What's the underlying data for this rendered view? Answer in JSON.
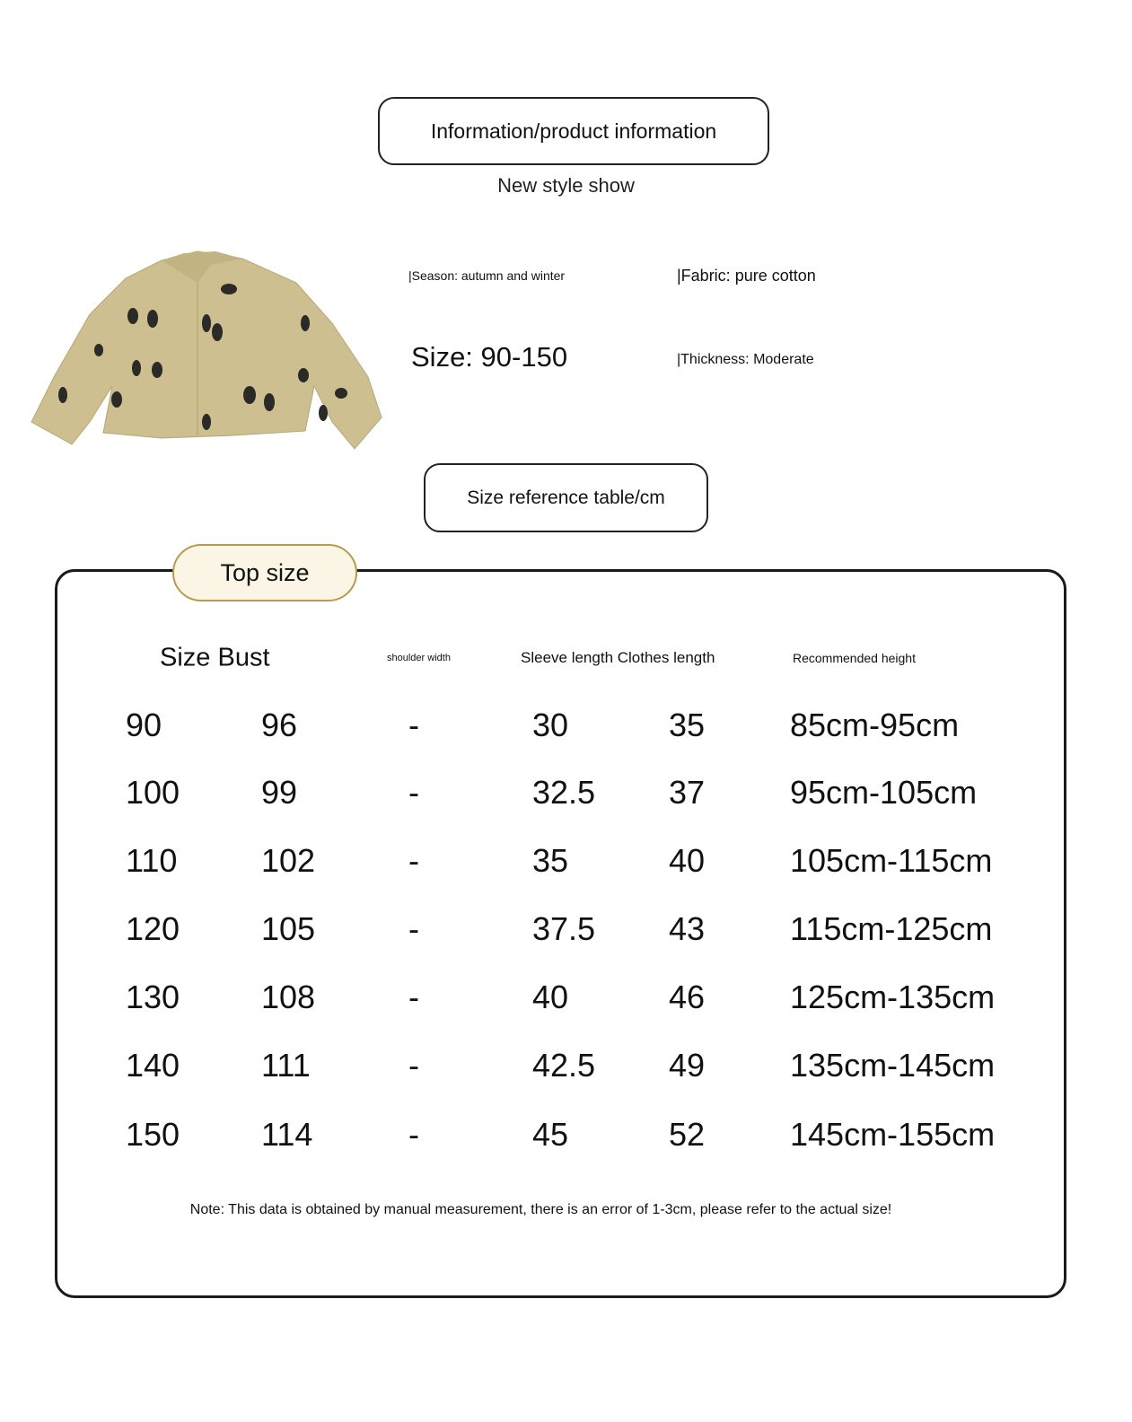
{
  "header": {
    "title": "Information/product information",
    "subtitle": "New style show"
  },
  "product": {
    "image": "khaki-printed-shirt-jacket-photo",
    "season": "|Season: autumn and winter",
    "fabric": "|Fabric: pure cotton",
    "size": "Size: 90-150",
    "thickness": "|Thickness: Moderate"
  },
  "size_table_title": "Size reference table/cm",
  "top_size": {
    "tag": "Top size",
    "headers": {
      "size_bust": "Size Bust",
      "shoulder": "shoulder width",
      "sleeve_clothes": "Sleeve length Clothes length",
      "height": "Recommended height"
    },
    "rows": [
      {
        "size": "90",
        "bust": "96",
        "shoulder": "-",
        "sleeve": "30",
        "length": "35",
        "height": "85cm-95cm"
      },
      {
        "size": "100",
        "bust": "99",
        "shoulder": "-",
        "sleeve": "32.5",
        "length": "37",
        "height": "95cm-105cm"
      },
      {
        "size": "110",
        "bust": "102",
        "shoulder": "-",
        "sleeve": "35",
        "length": "40",
        "height": "105cm-115cm"
      },
      {
        "size": "120",
        "bust": "105",
        "shoulder": "-",
        "sleeve": "37.5",
        "length": "43",
        "height": "115cm-125cm"
      },
      {
        "size": "130",
        "bust": "108",
        "shoulder": "-",
        "sleeve": "40",
        "length": "46",
        "height": "125cm-135cm"
      },
      {
        "size": "140",
        "bust": "111",
        "shoulder": "-",
        "sleeve": "42.5",
        "length": "49",
        "height": "135cm-145cm"
      },
      {
        "size": "150",
        "bust": "114",
        "shoulder": "-",
        "sleeve": "45",
        "length": "52",
        "height": "145cm-155cm"
      }
    ],
    "note": "Note: This data is obtained by manual measurement, there is an error of 1-3cm, please refer to the actual size!"
  },
  "colors": {
    "tag_border": "#b89a4e",
    "tag_fill": "#fbf5e6",
    "jacket": "#cdbf8f"
  }
}
